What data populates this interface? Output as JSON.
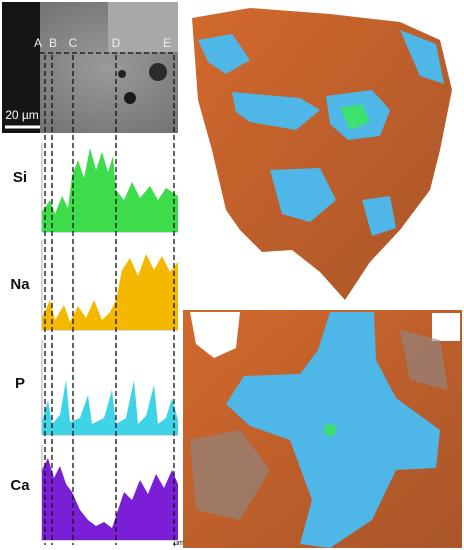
{
  "sem_image": {
    "markers": [
      "A",
      "B",
      "C",
      "D",
      "E"
    ],
    "scale_bar": "20 µm"
  },
  "line_scans": [
    {
      "element": "Si"
    },
    {
      "element": "Na"
    },
    {
      "element": "P"
    },
    {
      "element": "Ca"
    }
  ],
  "x_unit": "µm"
}
